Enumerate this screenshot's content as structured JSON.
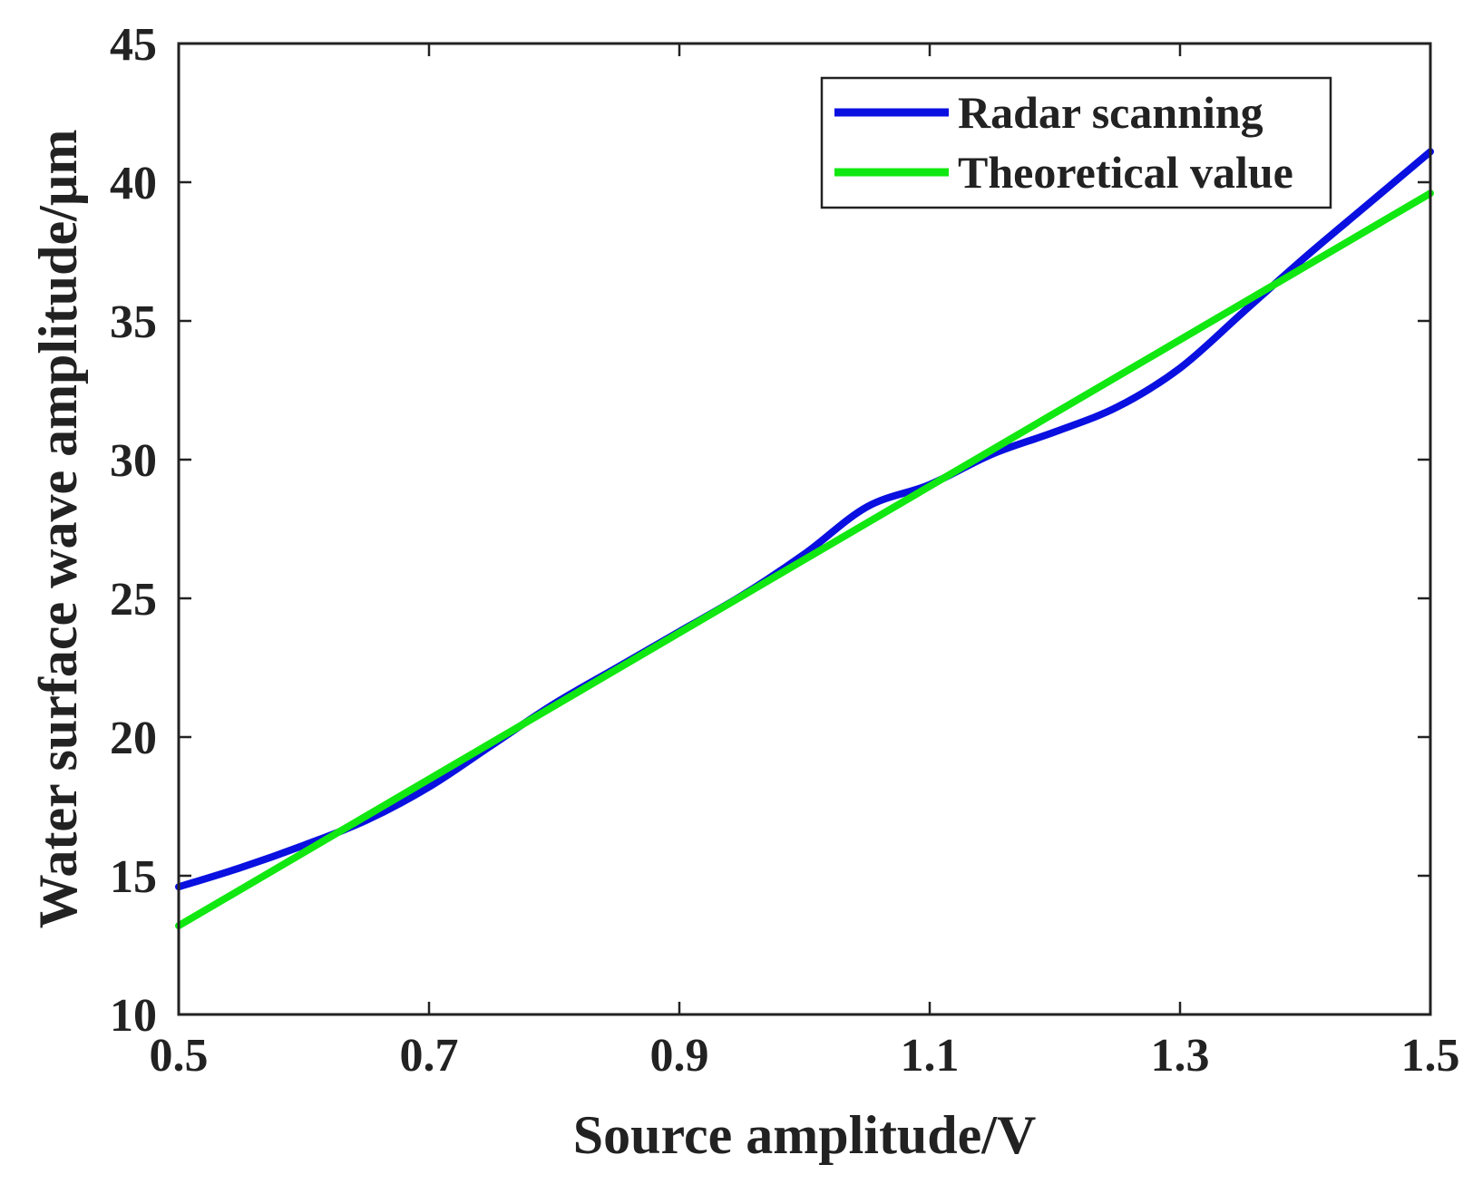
{
  "chart_data": {
    "type": "line",
    "title": "",
    "xlabel": "Source amplitude/V",
    "ylabel": "Water surface wave amplitude/µm",
    "xlim": [
      0.5,
      1.5
    ],
    "ylim": [
      10,
      45
    ],
    "xticks": [
      0.5,
      0.7,
      0.9,
      1.1,
      1.3,
      1.5
    ],
    "xtick_labels": [
      "0.5",
      "0.7",
      "0.9",
      "1.1",
      "1.3",
      "1.5"
    ],
    "yticks": [
      10,
      15,
      20,
      25,
      30,
      35,
      40,
      45
    ],
    "ytick_labels": [
      "10",
      "15",
      "20",
      "25",
      "30",
      "35",
      "40",
      "45"
    ],
    "grid": false,
    "legend_position": "top-right",
    "series": [
      {
        "name": "Radar scanning",
        "color": "#0a10e0",
        "x": [
          0.5,
          0.55,
          0.6,
          0.65,
          0.7,
          0.75,
          0.8,
          0.85,
          0.9,
          0.95,
          1.0,
          1.05,
          1.1,
          1.15,
          1.2,
          1.25,
          1.3,
          1.35,
          1.4,
          1.45,
          1.5
        ],
        "y": [
          14.6,
          15.3,
          16.1,
          17.0,
          18.2,
          19.7,
          21.2,
          22.5,
          23.8,
          25.1,
          26.6,
          28.3,
          29.1,
          30.2,
          31.0,
          31.9,
          33.3,
          35.3,
          37.3,
          39.2,
          41.1
        ]
      },
      {
        "name": "Theoretical value",
        "color": "#11e811",
        "x": [
          0.5,
          1.5
        ],
        "y": [
          13.2,
          39.6
        ]
      }
    ]
  }
}
